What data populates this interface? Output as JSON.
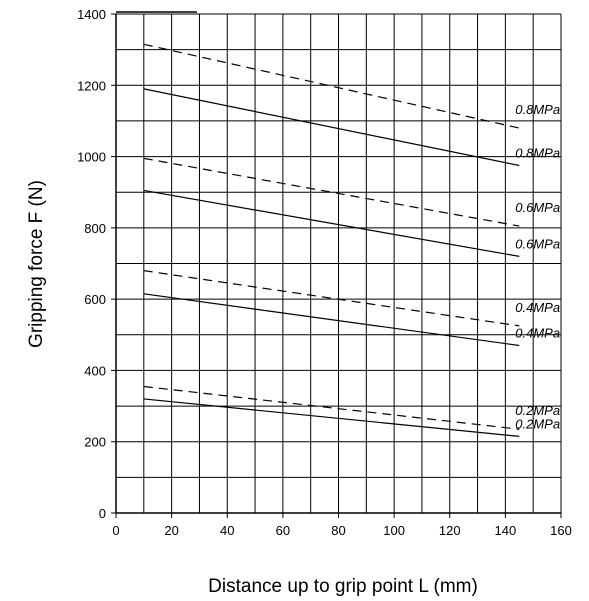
{
  "chart_data": {
    "type": "line",
    "title": "",
    "xlabel": "Distance up to grip point L (mm)",
    "ylabel": "Gripping force F (N)",
    "xlim": [
      0,
      160
    ],
    "ylim": [
      0,
      1400
    ],
    "xticks": [
      "0",
      "20",
      "40",
      "60",
      "80",
      "100",
      "120",
      "140",
      "160"
    ],
    "yticks": [
      "0",
      "200",
      "400",
      "600",
      "800",
      "1000",
      "1200",
      "1400"
    ],
    "x_grid_step": 10,
    "y_grid_step": 100,
    "grid": true,
    "series": [
      {
        "name": "0.8MPa",
        "style": "dashed",
        "x": [
          10,
          145
        ],
        "y": [
          1315,
          1080
        ]
      },
      {
        "name": "0.8MPa",
        "style": "solid",
        "x": [
          10,
          145
        ],
        "y": [
          1190,
          975
        ]
      },
      {
        "name": "0.6MPa",
        "style": "dashed",
        "x": [
          10,
          145
        ],
        "y": [
          995,
          805
        ]
      },
      {
        "name": "0.6MPa",
        "style": "solid",
        "x": [
          10,
          145
        ],
        "y": [
          905,
          720
        ]
      },
      {
        "name": "0.4MPa",
        "style": "dashed",
        "x": [
          10,
          145
        ],
        "y": [
          680,
          525
        ]
      },
      {
        "name": "0.4MPa",
        "style": "solid",
        "x": [
          10,
          145
        ],
        "y": [
          615,
          470
        ]
      },
      {
        "name": "0.2MPa",
        "style": "dashed",
        "x": [
          10,
          145
        ],
        "y": [
          355,
          235
        ]
      },
      {
        "name": "0.2MPa",
        "style": "solid",
        "x": [
          10,
          145
        ],
        "y": [
          320,
          215
        ]
      }
    ]
  }
}
